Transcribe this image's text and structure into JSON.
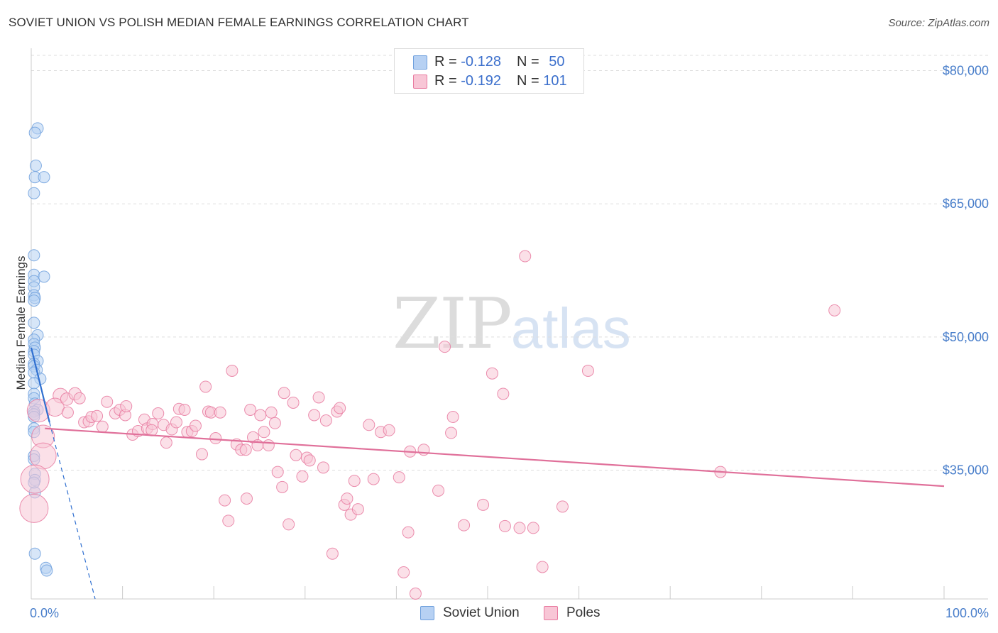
{
  "title": "SOVIET UNION VS POLISH MEDIAN FEMALE EARNINGS CORRELATION CHART",
  "source": "Source: ZipAtlas.com",
  "watermark": {
    "part1": "ZIP",
    "part2": "atlas"
  },
  "colors": {
    "soviet": "#6fa0dd",
    "soviet_fill": "#b7d1f3",
    "soviet_line": "#2f6fd0",
    "poles": "#e87aa0",
    "poles_fill": "#f8c6d6",
    "poles_line": "#e0709a",
    "grid": "#dddddd",
    "tick_text": "#4a7fcb"
  },
  "legend": {
    "rows": [
      {
        "r_label": "R = ",
        "r_value": "-0.128",
        "n_label": "N = ",
        "n_value": "50"
      },
      {
        "r_label": "R = ",
        "r_value": "-0.192",
        "n_label": "N = ",
        "n_value": "101"
      }
    ]
  },
  "bottom_legend": [
    "Soviet Union",
    "Poles"
  ],
  "chart_data": {
    "type": "scatter",
    "title": "SOVIET UNION VS POLISH MEDIAN FEMALE EARNINGS CORRELATION CHART",
    "xlabel": "",
    "ylabel": "Median Female Earnings",
    "xlim": [
      0,
      100
    ],
    "ylim": [
      20500,
      83000
    ],
    "x_tick_labels": [
      {
        "x": 0,
        "label": "0.0%"
      },
      {
        "x": 100,
        "label": "100.0%"
      }
    ],
    "y_ticks": [
      {
        "y": 35000,
        "label": "$35,000"
      },
      {
        "y": 50000,
        "label": "$50,000"
      },
      {
        "y": 65000,
        "label": "$65,000"
      },
      {
        "y": 80000,
        "label": "$80,000"
      }
    ],
    "grid": true,
    "series": [
      {
        "name": "Soviet Union",
        "R": -0.128,
        "N": 50,
        "trend": {
          "x": [
            0,
            2.0
          ],
          "y": [
            48800,
            40400
          ]
        },
        "trend_extension": {
          "x": [
            2.0,
            7.0
          ],
          "y": [
            40400,
            20500
          ]
        },
        "points": [
          {
            "x": 0.7,
            "y": 73500,
            "s": 1
          },
          {
            "x": 0.4,
            "y": 73000,
            "s": 1
          },
          {
            "x": 0.5,
            "y": 69300,
            "s": 1
          },
          {
            "x": 0.4,
            "y": 68000,
            "s": 1
          },
          {
            "x": 1.4,
            "y": 68000,
            "s": 1
          },
          {
            "x": 0.3,
            "y": 66200,
            "s": 1
          },
          {
            "x": 0.3,
            "y": 59200,
            "s": 1
          },
          {
            "x": 0.3,
            "y": 57000,
            "s": 1
          },
          {
            "x": 1.4,
            "y": 56800,
            "s": 1
          },
          {
            "x": 0.3,
            "y": 56300,
            "s": 1
          },
          {
            "x": 0.3,
            "y": 55600,
            "s": 1
          },
          {
            "x": 0.3,
            "y": 54700,
            "s": 1
          },
          {
            "x": 0.4,
            "y": 54400,
            "s": 1
          },
          {
            "x": 0.3,
            "y": 54100,
            "s": 1
          },
          {
            "x": 0.3,
            "y": 51600,
            "s": 1
          },
          {
            "x": 0.7,
            "y": 50200,
            "s": 1
          },
          {
            "x": 0.3,
            "y": 49700,
            "s": 1
          },
          {
            "x": 0.3,
            "y": 49200,
            "s": 1
          },
          {
            "x": 0.4,
            "y": 48800,
            "s": 1
          },
          {
            "x": 0.3,
            "y": 48400,
            "s": 1
          },
          {
            "x": 0.3,
            "y": 48000,
            "s": 1
          },
          {
            "x": 0.7,
            "y": 47300,
            "s": 1
          },
          {
            "x": 0.3,
            "y": 47000,
            "s": 1
          },
          {
            "x": 0.3,
            "y": 46700,
            "s": 1
          },
          {
            "x": 0.6,
            "y": 46300,
            "s": 1
          },
          {
            "x": 0.3,
            "y": 46000,
            "s": 1
          },
          {
            "x": 1.0,
            "y": 45300,
            "s": 1
          },
          {
            "x": 0.3,
            "y": 44800,
            "s": 1
          },
          {
            "x": 0.3,
            "y": 43600,
            "s": 1
          },
          {
            "x": 0.3,
            "y": 43100,
            "s": 1
          },
          {
            "x": 0.4,
            "y": 42500,
            "s": 1
          },
          {
            "x": 0.7,
            "y": 41800,
            "s": 1
          },
          {
            "x": 0.3,
            "y": 41600,
            "s": 1
          },
          {
            "x": 0.3,
            "y": 41300,
            "s": 1
          },
          {
            "x": 0.3,
            "y": 41000,
            "s": 1
          },
          {
            "x": 0.3,
            "y": 39700,
            "s": 1
          },
          {
            "x": 0.3,
            "y": 39300,
            "s": 1
          },
          {
            "x": 0.3,
            "y": 36600,
            "s": 1
          },
          {
            "x": 0.3,
            "y": 36200,
            "s": 1
          },
          {
            "x": 0.4,
            "y": 34600,
            "s": 1
          },
          {
            "x": 0.4,
            "y": 33900,
            "s": 1
          },
          {
            "x": 0.3,
            "y": 33600,
            "s": 1
          },
          {
            "x": 0.4,
            "y": 32500,
            "s": 1
          },
          {
            "x": 0.4,
            "y": 25600,
            "s": 1
          },
          {
            "x": 1.6,
            "y": 24000,
            "s": 1
          },
          {
            "x": 1.7,
            "y": 23700,
            "s": 1
          }
        ]
      },
      {
        "name": "Poles",
        "R": -0.192,
        "N": 101,
        "trend": {
          "x": [
            1.5,
            100
          ],
          "y": [
            39700,
            33200
          ]
        },
        "points": [
          {
            "x": 0.8,
            "y": 41700,
            "s": 2
          },
          {
            "x": 1.3,
            "y": 38800,
            "s": 2
          },
          {
            "x": 1.3,
            "y": 36600,
            "s": 2.3
          },
          {
            "x": 0.4,
            "y": 34000,
            "s": 2.5
          },
          {
            "x": 0.3,
            "y": 30700,
            "s": 2.5
          },
          {
            "x": 3.2,
            "y": 43400,
            "s": 1.3
          },
          {
            "x": 2.6,
            "y": 42100,
            "s": 1.6
          },
          {
            "x": 3.9,
            "y": 43000,
            "s": 1.1
          },
          {
            "x": 4.8,
            "y": 43600,
            "s": 1.1
          },
          {
            "x": 5.3,
            "y": 43100,
            "s": 1
          },
          {
            "x": 4.0,
            "y": 41500,
            "s": 1
          },
          {
            "x": 5.8,
            "y": 40400,
            "s": 1
          },
          {
            "x": 6.3,
            "y": 40500,
            "s": 1
          },
          {
            "x": 6.6,
            "y": 41000,
            "s": 1
          },
          {
            "x": 7.2,
            "y": 41100,
            "s": 1
          },
          {
            "x": 7.8,
            "y": 39900,
            "s": 1
          },
          {
            "x": 8.3,
            "y": 42700,
            "s": 1
          },
          {
            "x": 9.2,
            "y": 41400,
            "s": 1
          },
          {
            "x": 9.7,
            "y": 41800,
            "s": 1
          },
          {
            "x": 10.3,
            "y": 41200,
            "s": 1
          },
          {
            "x": 10.4,
            "y": 42200,
            "s": 1
          },
          {
            "x": 11.1,
            "y": 39000,
            "s": 1
          },
          {
            "x": 11.7,
            "y": 39400,
            "s": 1
          },
          {
            "x": 12.4,
            "y": 40700,
            "s": 1
          },
          {
            "x": 12.7,
            "y": 39700,
            "s": 1
          },
          {
            "x": 13.3,
            "y": 40200,
            "s": 1
          },
          {
            "x": 13.2,
            "y": 39500,
            "s": 1
          },
          {
            "x": 13.9,
            "y": 41400,
            "s": 1
          },
          {
            "x": 14.5,
            "y": 40100,
            "s": 1
          },
          {
            "x": 14.8,
            "y": 38100,
            "s": 1
          },
          {
            "x": 15.4,
            "y": 39600,
            "s": 1
          },
          {
            "x": 15.9,
            "y": 40400,
            "s": 1
          },
          {
            "x": 16.2,
            "y": 41900,
            "s": 1
          },
          {
            "x": 16.8,
            "y": 41800,
            "s": 1
          },
          {
            "x": 17.1,
            "y": 39300,
            "s": 1
          },
          {
            "x": 17.6,
            "y": 39400,
            "s": 1
          },
          {
            "x": 18.0,
            "y": 40000,
            "s": 1
          },
          {
            "x": 18.7,
            "y": 36800,
            "s": 1
          },
          {
            "x": 19.1,
            "y": 44400,
            "s": 1
          },
          {
            "x": 19.4,
            "y": 41600,
            "s": 1
          },
          {
            "x": 19.7,
            "y": 41500,
            "s": 1
          },
          {
            "x": 20.2,
            "y": 38600,
            "s": 1
          },
          {
            "x": 20.7,
            "y": 41500,
            "s": 1
          },
          {
            "x": 21.2,
            "y": 31600,
            "s": 1
          },
          {
            "x": 21.6,
            "y": 29300,
            "s": 1
          },
          {
            "x": 22.0,
            "y": 46200,
            "s": 1
          },
          {
            "x": 22.5,
            "y": 37900,
            "s": 1
          },
          {
            "x": 23.0,
            "y": 37300,
            "s": 1
          },
          {
            "x": 23.5,
            "y": 37300,
            "s": 1
          },
          {
            "x": 23.6,
            "y": 31800,
            "s": 1
          },
          {
            "x": 24.0,
            "y": 41800,
            "s": 1
          },
          {
            "x": 24.3,
            "y": 38700,
            "s": 1
          },
          {
            "x": 24.8,
            "y": 37800,
            "s": 1
          },
          {
            "x": 25.1,
            "y": 41200,
            "s": 1
          },
          {
            "x": 25.5,
            "y": 39300,
            "s": 1
          },
          {
            "x": 26.0,
            "y": 37800,
            "s": 1
          },
          {
            "x": 26.3,
            "y": 41500,
            "s": 1
          },
          {
            "x": 26.7,
            "y": 40300,
            "s": 1
          },
          {
            "x": 27.0,
            "y": 34800,
            "s": 1
          },
          {
            "x": 27.5,
            "y": 33100,
            "s": 1
          },
          {
            "x": 27.7,
            "y": 43700,
            "s": 1
          },
          {
            "x": 28.2,
            "y": 28900,
            "s": 1
          },
          {
            "x": 28.7,
            "y": 42600,
            "s": 1
          },
          {
            "x": 29.0,
            "y": 36700,
            "s": 1
          },
          {
            "x": 29.7,
            "y": 34300,
            "s": 1
          },
          {
            "x": 30.2,
            "y": 36400,
            "s": 1
          },
          {
            "x": 30.5,
            "y": 36100,
            "s": 1
          },
          {
            "x": 31.0,
            "y": 41200,
            "s": 1
          },
          {
            "x": 31.5,
            "y": 43200,
            "s": 1
          },
          {
            "x": 32.0,
            "y": 35300,
            "s": 1
          },
          {
            "x": 32.3,
            "y": 40600,
            "s": 1
          },
          {
            "x": 33.0,
            "y": 25600,
            "s": 1
          },
          {
            "x": 33.5,
            "y": 41600,
            "s": 1
          },
          {
            "x": 33.8,
            "y": 42000,
            "s": 1
          },
          {
            "x": 34.3,
            "y": 31100,
            "s": 1
          },
          {
            "x": 34.6,
            "y": 31800,
            "s": 1
          },
          {
            "x": 35.0,
            "y": 30000,
            "s": 1
          },
          {
            "x": 35.4,
            "y": 33800,
            "s": 1
          },
          {
            "x": 35.8,
            "y": 30600,
            "s": 1
          },
          {
            "x": 37.0,
            "y": 40100,
            "s": 1
          },
          {
            "x": 37.5,
            "y": 34000,
            "s": 1
          },
          {
            "x": 38.3,
            "y": 39300,
            "s": 1
          },
          {
            "x": 39.2,
            "y": 39500,
            "s": 1
          },
          {
            "x": 40.3,
            "y": 34200,
            "s": 1
          },
          {
            "x": 40.8,
            "y": 23500,
            "s": 1
          },
          {
            "x": 41.3,
            "y": 28000,
            "s": 1
          },
          {
            "x": 41.5,
            "y": 37100,
            "s": 1
          },
          {
            "x": 42.1,
            "y": 21100,
            "s": 1
          },
          {
            "x": 43.0,
            "y": 37300,
            "s": 1
          },
          {
            "x": 44.6,
            "y": 32700,
            "s": 1
          },
          {
            "x": 45.3,
            "y": 48900,
            "s": 1
          },
          {
            "x": 46.0,
            "y": 39200,
            "s": 1
          },
          {
            "x": 46.2,
            "y": 41000,
            "s": 1
          },
          {
            "x": 47.4,
            "y": 28800,
            "s": 1
          },
          {
            "x": 49.5,
            "y": 31100,
            "s": 1
          },
          {
            "x": 50.5,
            "y": 45900,
            "s": 1
          },
          {
            "x": 51.7,
            "y": 43600,
            "s": 1
          },
          {
            "x": 51.9,
            "y": 28700,
            "s": 1
          },
          {
            "x": 53.5,
            "y": 28500,
            "s": 1
          },
          {
            "x": 54.1,
            "y": 59100,
            "s": 1
          },
          {
            "x": 55.0,
            "y": 28500,
            "s": 1
          },
          {
            "x": 56.0,
            "y": 24100,
            "s": 1
          },
          {
            "x": 58.2,
            "y": 30900,
            "s": 1
          },
          {
            "x": 61.0,
            "y": 46200,
            "s": 1
          },
          {
            "x": 75.5,
            "y": 34800,
            "s": 1
          },
          {
            "x": 88.0,
            "y": 53000,
            "s": 1
          }
        ]
      }
    ]
  }
}
